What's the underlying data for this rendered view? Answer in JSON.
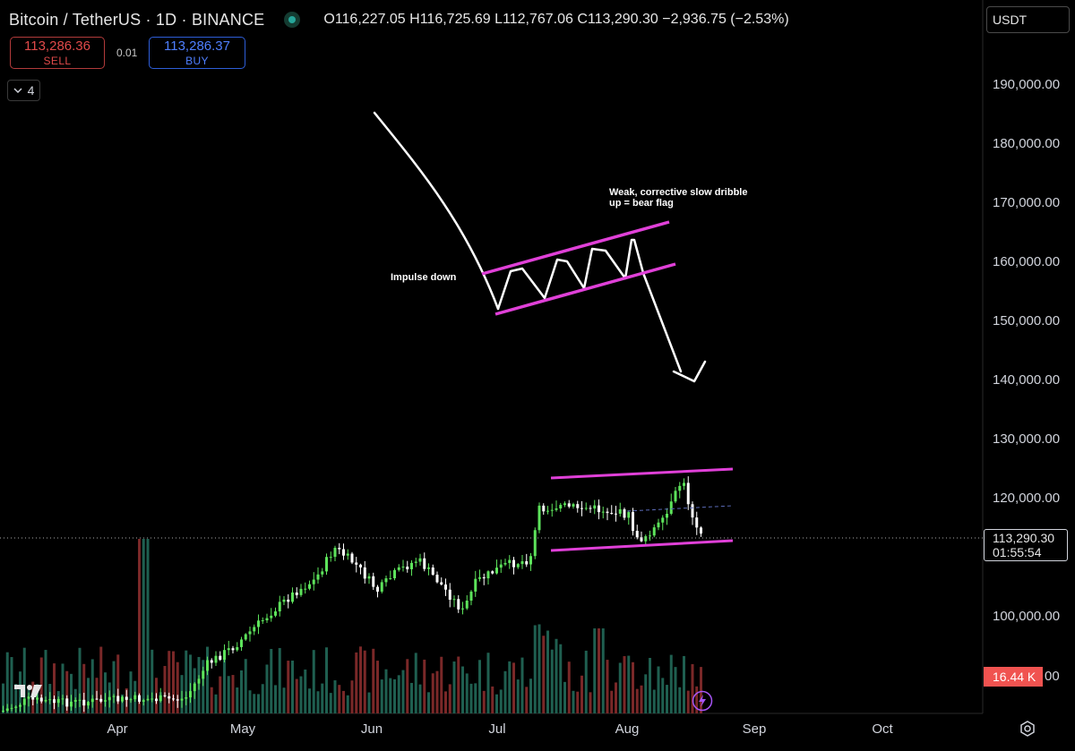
{
  "header": {
    "title": "Bitcoin / TetherUS · 1D · BINANCE",
    "open_label": "O",
    "open": "116,227.05",
    "high_label": "H",
    "high": "116,725.69",
    "low_label": "L",
    "low": "112,767.06",
    "close_label": "C",
    "close": "113,290.30",
    "change": "−2,936.75 (−2.53%)"
  },
  "trade": {
    "sell_price": "113,286.36",
    "sell_label": "SELL",
    "spread": "0.01",
    "buy_price": "113,286.37",
    "buy_label": "BUY"
  },
  "indicators": {
    "count": "4"
  },
  "currency": {
    "selected": "USDT"
  },
  "y_axis": [
    "190,000.00",
    "180,000.00",
    "170,000.00",
    "160,000.00",
    "150,000.00",
    "140,000.00",
    "130,000.00",
    "120,000.00",
    "100,000.00"
  ],
  "x_axis": [
    "Apr",
    "May",
    "Jun",
    "Jul",
    "Aug",
    "Sep",
    "Oct"
  ],
  "last_price": {
    "price": "113,290.30",
    "countdown": "01:55:54"
  },
  "volume_tag": {
    "value": "16.44 K",
    "tail": "00"
  },
  "annotations": {
    "impulse": "Impulse down",
    "flag_line1": "Weak, corrective slow dribble",
    "flag_line2": "up = bear flag"
  },
  "colors": {
    "up": "#26a69a",
    "up_candle": "#5de35b",
    "down_candle": "#ffffff",
    "vol_up": "#1f5f50",
    "vol_down": "#7a2828",
    "channel": "#e040d8",
    "sell": "#e04a4a",
    "buy": "#4f7fff",
    "volume_badge": "#f05350"
  },
  "icons": [
    "chevron-down-icon",
    "settings-icon",
    "tradingview-logo",
    "lightning-icon",
    "status-dot-icon"
  ]
}
